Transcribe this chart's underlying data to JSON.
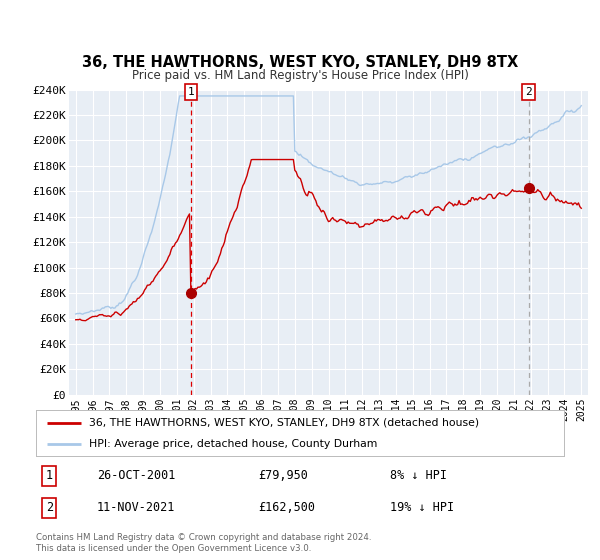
{
  "title": "36, THE HAWTHORNS, WEST KYO, STANLEY, DH9 8TX",
  "subtitle": "Price paid vs. HM Land Registry's House Price Index (HPI)",
  "legend_line1": "36, THE HAWTHORNS, WEST KYO, STANLEY, DH9 8TX (detached house)",
  "legend_line2": "HPI: Average price, detached house, County Durham",
  "transaction1_date": "26-OCT-2001",
  "transaction1_price": "£79,950",
  "transaction1_hpi": "8% ↓ HPI",
  "transaction2_date": "11-NOV-2021",
  "transaction2_price": "£162,500",
  "transaction2_hpi": "19% ↓ HPI",
  "footer": "Contains HM Land Registry data © Crown copyright and database right 2024.\nThis data is licensed under the Open Government Licence v3.0.",
  "hpi_color": "#a8c8e8",
  "price_color": "#cc0000",
  "vline1_color": "#dd0000",
  "vline2_color": "#aaaaaa",
  "dot_color": "#aa0000",
  "background_color": "#ffffff",
  "plot_bg_color": "#e8eef5",
  "grid_color": "#ffffff",
  "ylim": [
    0,
    240000
  ],
  "yticks": [
    0,
    20000,
    40000,
    60000,
    80000,
    100000,
    120000,
    140000,
    160000,
    180000,
    200000,
    220000,
    240000
  ],
  "transaction1_x": 2001.82,
  "transaction2_x": 2021.87,
  "transaction1_y": 79950,
  "transaction2_y": 162500,
  "xlim_left": 1994.6,
  "xlim_right": 2025.4
}
